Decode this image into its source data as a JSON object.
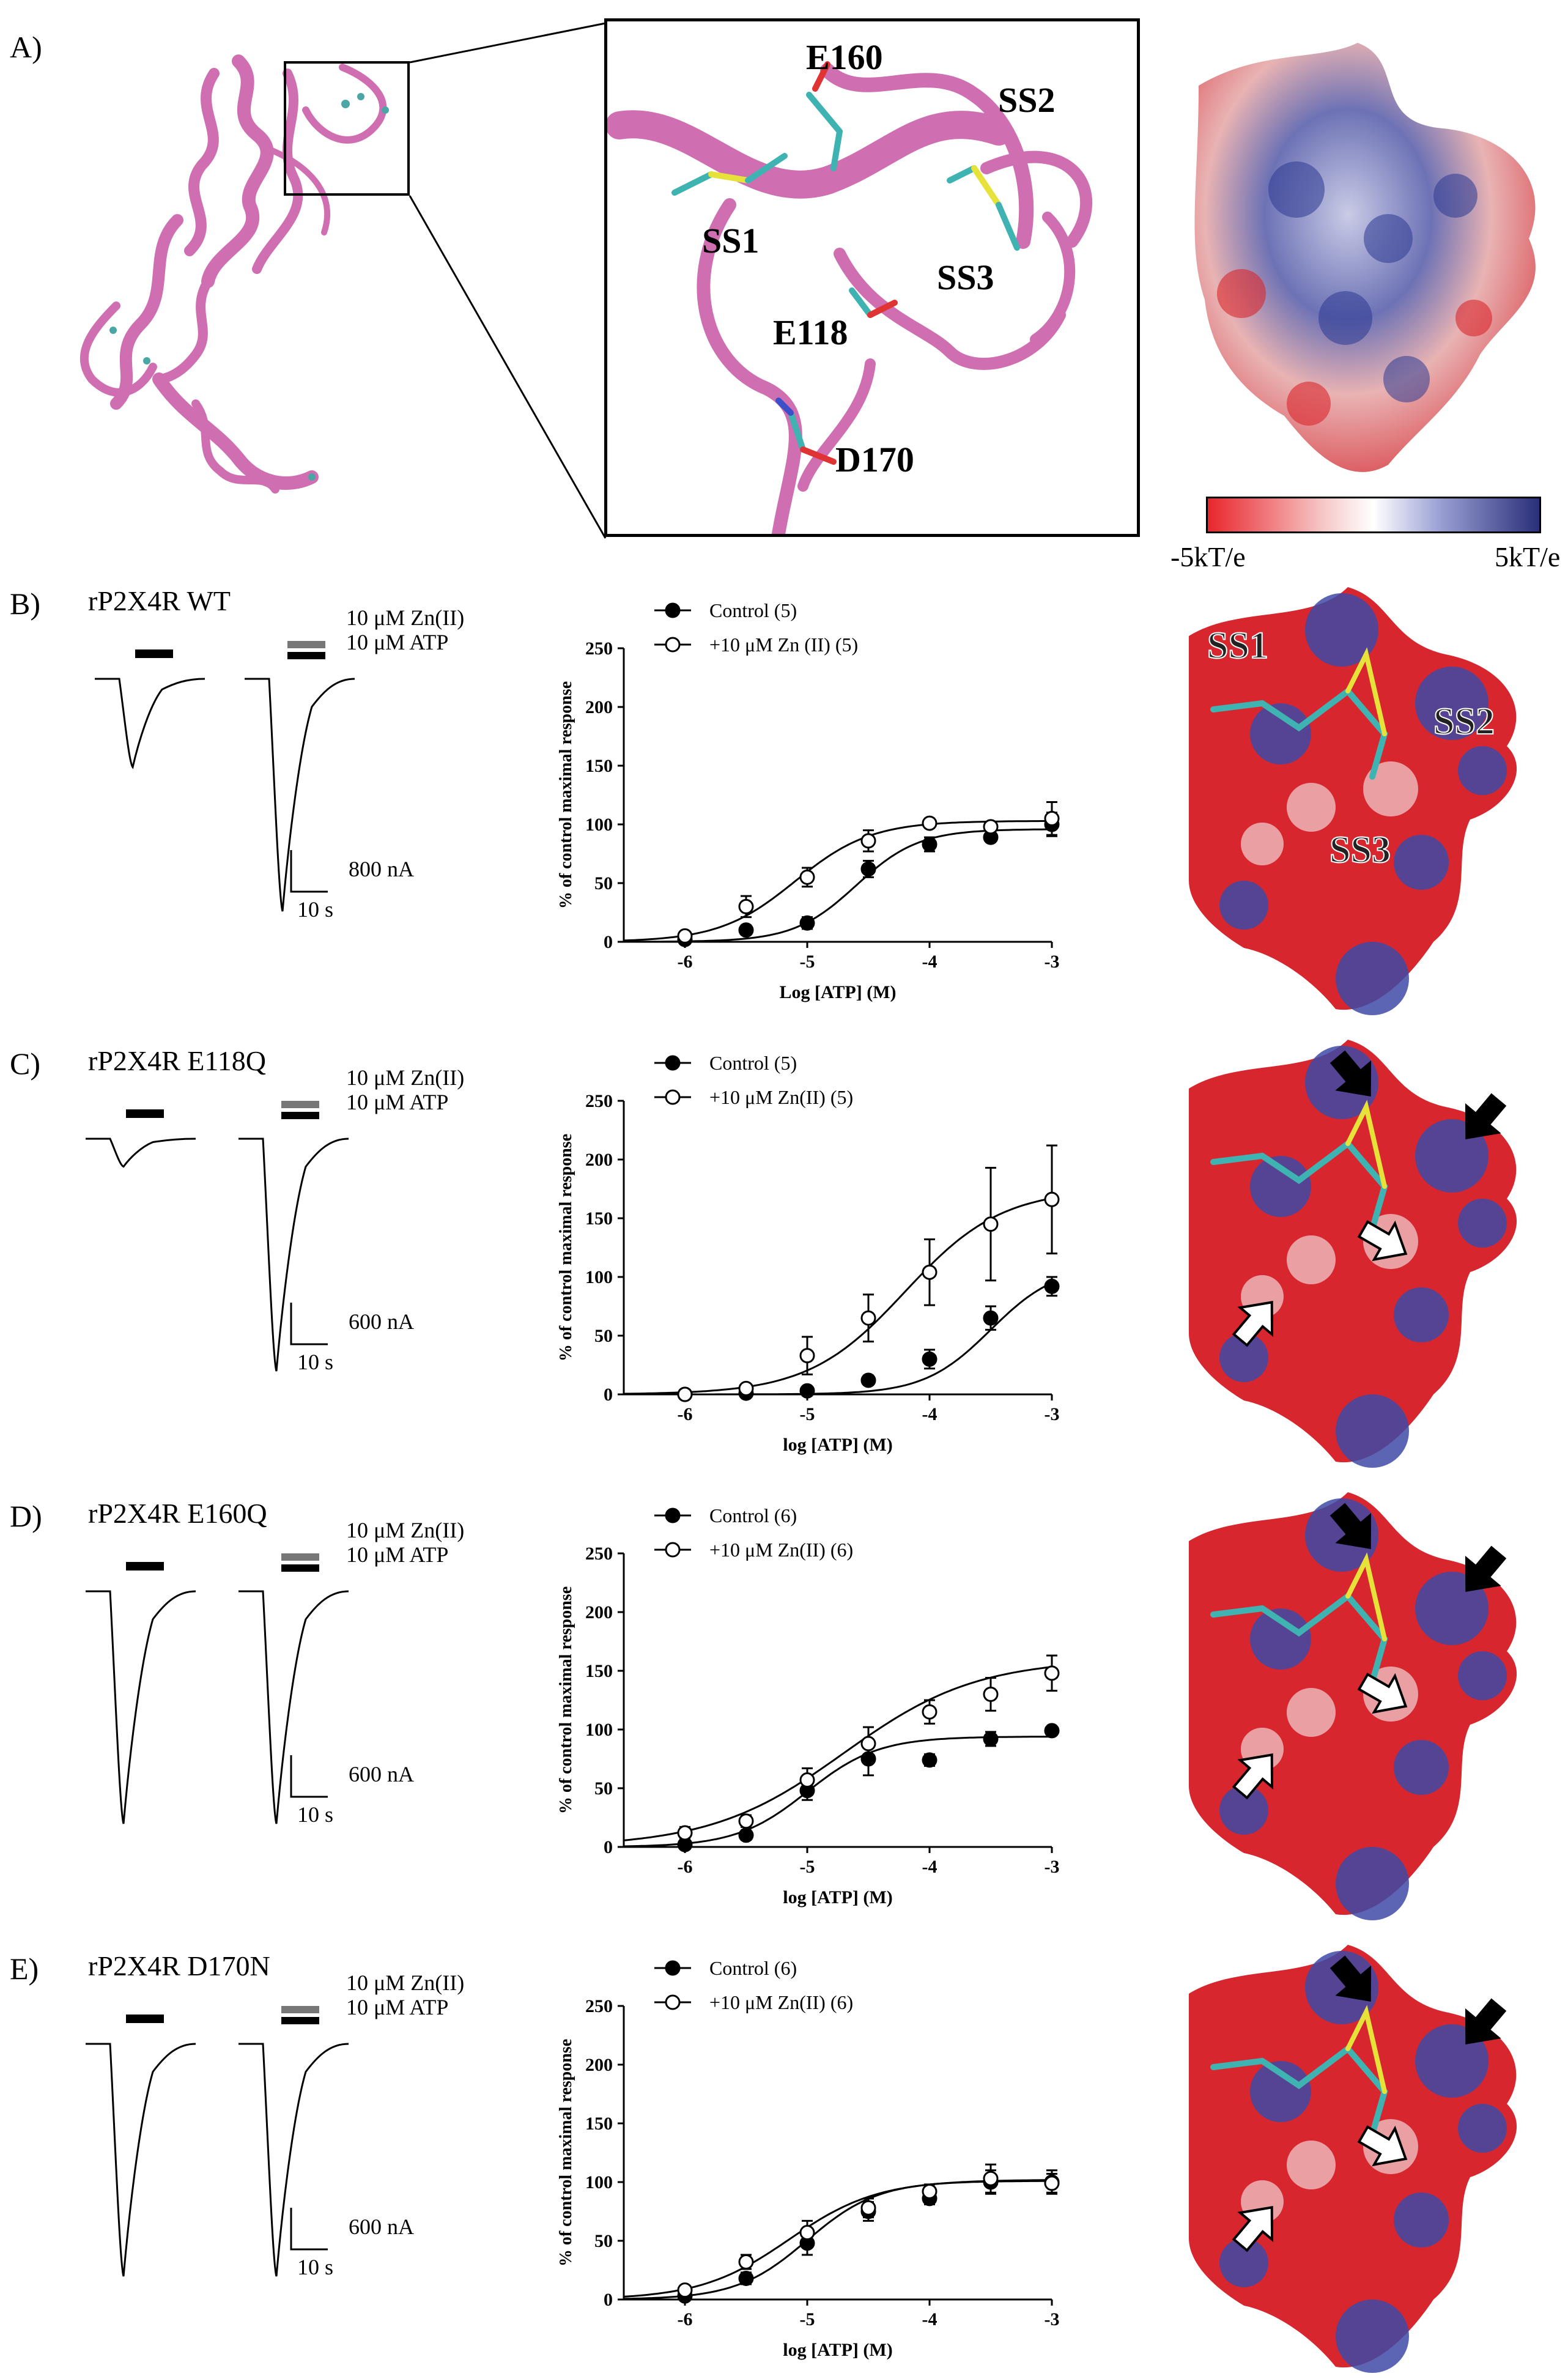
{
  "panel_a": {
    "label": "A)",
    "zoom_labels": [
      "E160",
      "SS2",
      "SS1",
      "SS3",
      "E118",
      "D170"
    ],
    "colorbar": {
      "min_label": "-5kT/e",
      "max_label": "5kT/e",
      "colors": [
        "#e8262c",
        "#ffffff",
        "#2a2f7a"
      ]
    }
  },
  "panels": [
    {
      "id": "B",
      "label": "B)",
      "title": "rP2X4R WT",
      "stim_zn": "10 μM Zn(II)",
      "stim_atp": "10 μM ATP",
      "scale_label": "800 nA",
      "time_label": "10 s",
      "trace_control_depth": 0.38,
      "trace_zn_depth": 1.0,
      "surface_labels": [
        "SS1",
        "SS2",
        "SS3"
      ],
      "chart_data": {
        "type": "line",
        "xlabel": "Log [ATP] (M)",
        "ylabel": "% of control maximal response",
        "xlim": [
          -6.5,
          -3
        ],
        "ylim": [
          0,
          250
        ],
        "xticks": [
          -6,
          -5,
          -4,
          -3
        ],
        "yticks": [
          0,
          50,
          100,
          150,
          200,
          250
        ],
        "legend_position": "top-left",
        "series": [
          {
            "name": "Control (5)",
            "marker": "filled",
            "x": [
              -6,
              -5.5,
              -5,
              -4.5,
              -4,
              -3.5,
              -3
            ],
            "y": [
              2,
              10,
              16,
              62,
              83,
              89,
              100
            ],
            "err": [
              1,
              4,
              5,
              7,
              6,
              4,
              10
            ],
            "fit": {
              "bottom": 0,
              "top": 96,
              "logec50": -4.6,
              "hill": 1.7
            }
          },
          {
            "name": "+10 μM Zn (II) (5)",
            "marker": "open",
            "x": [
              -6,
              -5.5,
              -5,
              -4.5,
              -4,
              -3.5,
              -3
            ],
            "y": [
              5,
              30,
              55,
              86,
              101,
              98,
              105
            ],
            "err": [
              2,
              9,
              8,
              9,
              4,
              4,
              14
            ],
            "fit": {
              "bottom": 0,
              "top": 103,
              "logec50": -5.1,
              "hill": 1.4
            }
          }
        ]
      }
    },
    {
      "id": "C",
      "label": "C)",
      "title": "rP2X4R E118Q",
      "stim_zn": "10 μM Zn(II)",
      "stim_atp": "10 μM ATP",
      "scale_label": "600 nA",
      "time_label": "10 s",
      "trace_control_depth": 0.12,
      "trace_zn_depth": 1.0,
      "surface_labels": [],
      "chart_data": {
        "type": "line",
        "xlabel": "log [ATP] (M)",
        "ylabel": "% of control maximal response",
        "xlim": [
          -6.5,
          -3
        ],
        "ylim": [
          0,
          250
        ],
        "xticks": [
          -6,
          -5,
          -4,
          -3
        ],
        "yticks": [
          0,
          50,
          100,
          150,
          200,
          250
        ],
        "legend_position": "top-left",
        "series": [
          {
            "name": "Control (5)",
            "marker": "filled",
            "x": [
              -6,
              -5.5,
              -5,
              -4.5,
              -4,
              -3.5,
              -3
            ],
            "y": [
              0,
              1,
              3,
              12,
              30,
              65,
              92
            ],
            "err": [
              1,
              1,
              2,
              4,
              8,
              10,
              8
            ],
            "fit": {
              "bottom": 0,
              "top": 110,
              "logec50": -3.5,
              "hill": 1.6
            }
          },
          {
            "name": "+10 μM Zn(II) (5)",
            "marker": "open",
            "x": [
              -6,
              -5.5,
              -5,
              -4.5,
              -4,
              -3.5,
              -3
            ],
            "y": [
              0,
              5,
              33,
              65,
              104,
              145,
              166
            ],
            "err": [
              1,
              3,
              16,
              20,
              28,
              48,
              46
            ],
            "fit": {
              "bottom": 0,
              "top": 175,
              "logec50": -4.2,
              "hill": 1.1
            }
          }
        ]
      }
    },
    {
      "id": "D",
      "label": "D)",
      "title": "rP2X4R E160Q",
      "stim_zn": "10 μM Zn(II)",
      "stim_atp": "10 μM ATP",
      "scale_label": "600 nA",
      "time_label": "10 s",
      "trace_control_depth": 1.0,
      "trace_zn_depth": 1.0,
      "surface_labels": [],
      "chart_data": {
        "type": "line",
        "xlabel": "log [ATP] (M)",
        "ylabel": "% of control maximal response",
        "xlim": [
          -6.5,
          -3
        ],
        "ylim": [
          0,
          250
        ],
        "xticks": [
          -6,
          -5,
          -4,
          -3
        ],
        "yticks": [
          0,
          50,
          100,
          150,
          200,
          250
        ],
        "legend_position": "top-left",
        "series": [
          {
            "name": "Control (6)",
            "marker": "filled",
            "x": [
              -6,
              -5.5,
              -5,
              -4.5,
              -4,
              -3.5,
              -3
            ],
            "y": [
              2,
              10,
              48,
              75,
              74,
              92,
              99
            ],
            "err": [
              2,
              4,
              8,
              14,
              5,
              6,
              3
            ],
            "fit": {
              "bottom": 0,
              "top": 94,
              "logec50": -5.0,
              "hill": 1.5
            }
          },
          {
            "name": "+10 μM Zn(II) (6)",
            "marker": "open",
            "x": [
              -6,
              -5.5,
              -5,
              -4.5,
              -4,
              -3.5,
              -3
            ],
            "y": [
              12,
              22,
              57,
              88,
              115,
              130,
              148
            ],
            "err": [
              5,
              5,
              10,
              14,
              10,
              14,
              15
            ],
            "fit": {
              "bottom": 0,
              "top": 160,
              "logec50": -4.7,
              "hill": 0.8
            }
          }
        ]
      }
    },
    {
      "id": "E",
      "label": "E)",
      "title": "rP2X4R D170N",
      "stim_zn": "10 μM Zn(II)",
      "stim_atp": "10 μM ATP",
      "scale_label": "600 nA",
      "time_label": "10 s",
      "trace_control_depth": 1.0,
      "trace_zn_depth": 1.0,
      "surface_labels": [],
      "chart_data": {
        "type": "line",
        "xlabel": "log [ATP] (M)",
        "ylabel": "% of control maximal response",
        "xlim": [
          -6.5,
          -3
        ],
        "ylim": [
          0,
          250
        ],
        "xticks": [
          -6,
          -5,
          -4,
          -3
        ],
        "yticks": [
          0,
          50,
          100,
          150,
          200,
          250
        ],
        "legend_position": "top-left",
        "series": [
          {
            "name": "Control (6)",
            "marker": "filled",
            "x": [
              -6,
              -5.5,
              -5,
              -4.5,
              -4,
              -3.5,
              -3
            ],
            "y": [
              3,
              18,
              48,
              75,
              86,
              100,
              100
            ],
            "err": [
              2,
              5,
              10,
              8,
              5,
              10,
              10
            ],
            "fit": {
              "bottom": 0,
              "top": 101,
              "logec50": -5.0,
              "hill": 1.5
            }
          },
          {
            "name": "+10 μM Zn(II) (6)",
            "marker": "open",
            "x": [
              -6,
              -5.5,
              -5,
              -4.5,
              -4,
              -3.5,
              -3
            ],
            "y": [
              8,
              32,
              57,
              78,
              92,
              103,
              99
            ],
            "err": [
              3,
              6,
              10,
              8,
              6,
              12,
              8
            ],
            "fit": {
              "bottom": 0,
              "top": 102,
              "logec50": -5.15,
              "hill": 1.2
            }
          }
        ]
      }
    }
  ]
}
